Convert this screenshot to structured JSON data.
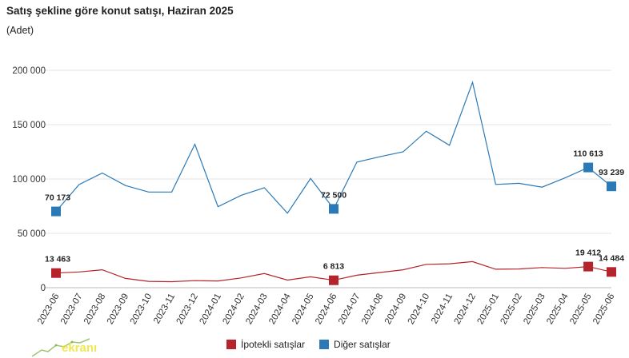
{
  "header": {
    "title": "Satış şekline göre konut satışı, Haziran 2025",
    "subtitle": "(Adet)"
  },
  "logo": {
    "text": "ekranı"
  },
  "chart_data": {
    "type": "line",
    "categories": [
      "2023-06",
      "2023-07",
      "2023-08",
      "2023-09",
      "2023-10",
      "2023-11",
      "2023-12",
      "2024-01",
      "2024-02",
      "2024-03",
      "2024-04",
      "2024-05",
      "2024-06",
      "2024-07",
      "2024-08",
      "2024-09",
      "2024-10",
      "2024-11",
      "2024-12",
      "2025-01",
      "2025-02",
      "2025-03",
      "2025-04",
      "2025-05",
      "2025-06"
    ],
    "series": [
      {
        "name": "Diğer satışlar",
        "color": "#2a7ab8",
        "values": [
          70173,
          95000,
          105500,
          94000,
          88000,
          88000,
          132000,
          74500,
          85000,
          92000,
          68500,
          100500,
          72500,
          115500,
          120500,
          125000,
          144000,
          131000,
          189000,
          95000,
          96000,
          92500,
          101000,
          110613,
          93239
        ]
      },
      {
        "name": "İpotekli satışlar",
        "color": "#b5242b",
        "values": [
          13463,
          14500,
          16500,
          8500,
          5800,
          5500,
          6500,
          6200,
          9000,
          13000,
          7000,
          10000,
          6813,
          11500,
          14000,
          16500,
          21500,
          22000,
          24000,
          17000,
          17200,
          18500,
          17800,
          19412,
          14484
        ]
      }
    ],
    "highlights": [
      {
        "series": 0,
        "index": 0,
        "label": "70 173"
      },
      {
        "series": 0,
        "index": 12,
        "label": "72 500"
      },
      {
        "series": 0,
        "index": 23,
        "label": "110 613"
      },
      {
        "series": 0,
        "index": 24,
        "label": "93 239"
      },
      {
        "series": 1,
        "index": 0,
        "label": "13 463"
      },
      {
        "series": 1,
        "index": 12,
        "label": "6 813"
      },
      {
        "series": 1,
        "index": 23,
        "label": "19 412"
      },
      {
        "series": 1,
        "index": 24,
        "label": "14 484"
      }
    ],
    "ylim": [
      0,
      200000
    ],
    "yticks": [
      0,
      50000,
      100000,
      150000,
      200000
    ],
    "ytick_labels": [
      "0",
      "50 000",
      "100 000",
      "150 000",
      "200 000"
    ],
    "grid": true,
    "legend": "bottom"
  }
}
